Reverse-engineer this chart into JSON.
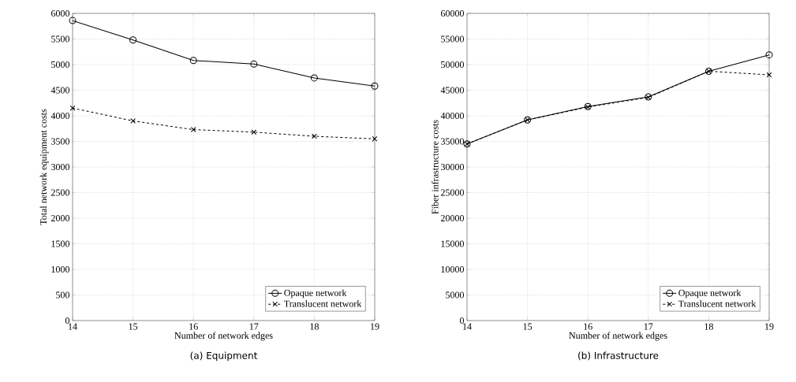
{
  "chart_data": [
    {
      "type": "line",
      "title": "(a) Equipment",
      "xlabel": "Number of network edges",
      "ylabel": "Total network equipment costs",
      "x": [
        14,
        15,
        16,
        17,
        18,
        19
      ],
      "xlim": [
        14,
        19
      ],
      "xticks": [
        14,
        15,
        16,
        17,
        18,
        19
      ],
      "ylim": [
        0,
        6000
      ],
      "yticks": [
        0,
        500,
        1000,
        1500,
        2000,
        2500,
        3000,
        3500,
        4000,
        4500,
        5000,
        5500,
        6000
      ],
      "grid": true,
      "legend": "bottom right",
      "series": [
        {
          "name": "Opaque network",
          "color": "#000000",
          "marker": "circle",
          "line_style": "solid",
          "values": [
            5860,
            5480,
            5080,
            5010,
            4740,
            4580
          ]
        },
        {
          "name": "Translucent network",
          "color": "#000000",
          "marker": "cross",
          "line_style": "dashed",
          "values": [
            4150,
            3900,
            3730,
            3680,
            3600,
            3550
          ]
        }
      ]
    },
    {
      "type": "line",
      "title": "(b) Infrastructure",
      "xlabel": "Number of network edges",
      "ylabel": "Fiber infrastructure costs",
      "x": [
        14,
        15,
        16,
        17,
        18,
        19
      ],
      "xlim": [
        14,
        19
      ],
      "xticks": [
        14,
        15,
        16,
        17,
        18,
        19
      ],
      "ylim": [
        0,
        60000
      ],
      "yticks": [
        0,
        5000,
        10000,
        15000,
        20000,
        25000,
        30000,
        35000,
        40000,
        45000,
        50000,
        55000,
        60000
      ],
      "grid": true,
      "legend": "bottom right",
      "series": [
        {
          "name": "Opaque network",
          "color": "#000000",
          "marker": "circle",
          "line_style": "solid",
          "values": [
            34500,
            39200,
            41800,
            43700,
            48700,
            51900
          ]
        },
        {
          "name": "Translucent network",
          "color": "#000000",
          "marker": "cross",
          "line_style": "dashed",
          "values": [
            34500,
            39200,
            41700,
            43600,
            48700,
            48000
          ]
        }
      ]
    }
  ]
}
